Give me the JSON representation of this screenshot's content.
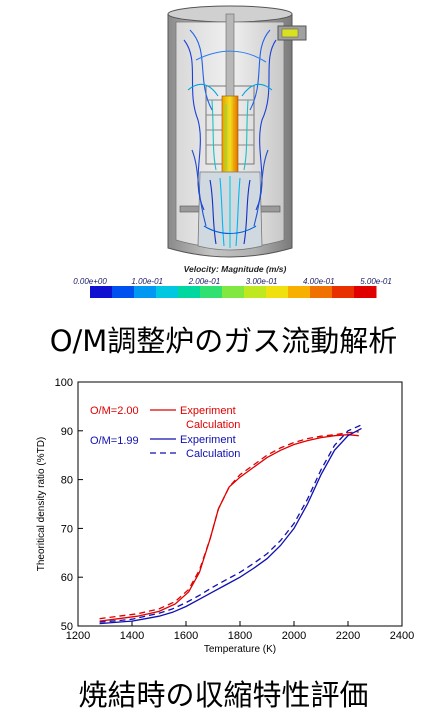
{
  "cfd_figure": {
    "colorbar_title": "Velocity: Magnitude (m/s)",
    "colorbar_ticks": [
      "0.00e+00",
      "1.00e-01",
      "2.00e-01",
      "3.00e-01",
      "4.00e-01",
      "5.00e-01"
    ],
    "colorbar_colors": [
      "#1010d0",
      "#0050f0",
      "#0098f0",
      "#00c8e0",
      "#00d8a0",
      "#30e070",
      "#80e840",
      "#c0e820",
      "#f0e010",
      "#f8b000",
      "#f07000",
      "#e83000",
      "#e00000"
    ],
    "caption": "O/M調整炉のガス流動解析"
  },
  "chart_data": {
    "type": "line",
    "title": "",
    "xlabel": "Temperature (K)",
    "ylabel": "Theoritical density ratio (%TD)",
    "xlim": [
      1200,
      2400
    ],
    "ylim": [
      50,
      100
    ],
    "xticks": [
      1200,
      1400,
      1600,
      1800,
      2000,
      2200,
      2400
    ],
    "yticks": [
      50,
      60,
      70,
      80,
      90,
      100
    ],
    "tick_labels_x": [
      "1200",
      "1400",
      "1600",
      "1800",
      "2000",
      "2200",
      "2400"
    ],
    "tick_labels_y": [
      "50",
      "60",
      "70",
      "80",
      "90",
      "100"
    ],
    "grid": false,
    "legend": {
      "placement": "top-left",
      "groups": [
        {
          "label": "O/M=2.00",
          "color": "#e00000",
          "entries": [
            "Experiment",
            "Calculation"
          ]
        },
        {
          "label": "O/M=1.99",
          "color": "#1010b0",
          "entries": [
            "Experiment",
            "Calculation"
          ]
        }
      ]
    },
    "series": [
      {
        "group": "O/M=2.00",
        "style": "solid",
        "color": "#e00000",
        "x": [
          1280,
          1350,
          1420,
          1500,
          1560,
          1610,
          1650,
          1690,
          1720,
          1760,
          1800,
          1850,
          1900,
          1950,
          2000,
          2050,
          2100,
          2150,
          2200,
          2240
        ],
        "y": [
          51,
          51.5,
          52,
          53,
          54.5,
          57,
          61,
          68,
          74,
          78.5,
          80.5,
          82.5,
          84.5,
          86,
          87.2,
          88,
          88.6,
          89,
          89.2,
          89
        ]
      },
      {
        "group": "O/M=2.00",
        "style": "dashed",
        "color": "#e00000",
        "x": [
          1280,
          1350,
          1420,
          1500,
          1560,
          1610,
          1650,
          1690,
          1720,
          1760,
          1800,
          1850,
          1900,
          1950,
          2000,
          2050,
          2100,
          2150,
          2200,
          2240
        ],
        "y": [
          51.5,
          52,
          52.5,
          53.5,
          55,
          57.5,
          61.5,
          68,
          74,
          78.5,
          81,
          83,
          85,
          86.5,
          87.6,
          88.4,
          88.9,
          89.2,
          89.6,
          89.8
        ]
      },
      {
        "group": "O/M=1.99",
        "style": "solid",
        "color": "#1010b0",
        "x": [
          1280,
          1350,
          1400,
          1450,
          1500,
          1550,
          1600,
          1650,
          1700,
          1750,
          1800,
          1850,
          1900,
          1950,
          2000,
          2050,
          2100,
          2150,
          2200,
          2250
        ],
        "y": [
          50.5,
          50.8,
          51,
          51.5,
          52,
          52.8,
          54,
          55.5,
          57,
          58.5,
          60,
          61.8,
          63.8,
          66.5,
          70,
          75,
          81,
          86,
          89,
          90.5
        ]
      },
      {
        "group": "O/M=1.99",
        "style": "dashed",
        "color": "#1010b0",
        "x": [
          1280,
          1350,
          1400,
          1450,
          1500,
          1550,
          1600,
          1650,
          1700,
          1750,
          1800,
          1850,
          1900,
          1950,
          2000,
          2050,
          2100,
          2150,
          2200,
          2250
        ],
        "y": [
          50.8,
          51.1,
          51.4,
          52,
          52.6,
          53.5,
          54.8,
          56.3,
          58,
          59.5,
          61,
          62.8,
          64.8,
          67.5,
          71,
          76,
          82,
          87,
          90,
          91.2
        ]
      }
    ],
    "caption": "焼結時の収縮特性評価"
  }
}
